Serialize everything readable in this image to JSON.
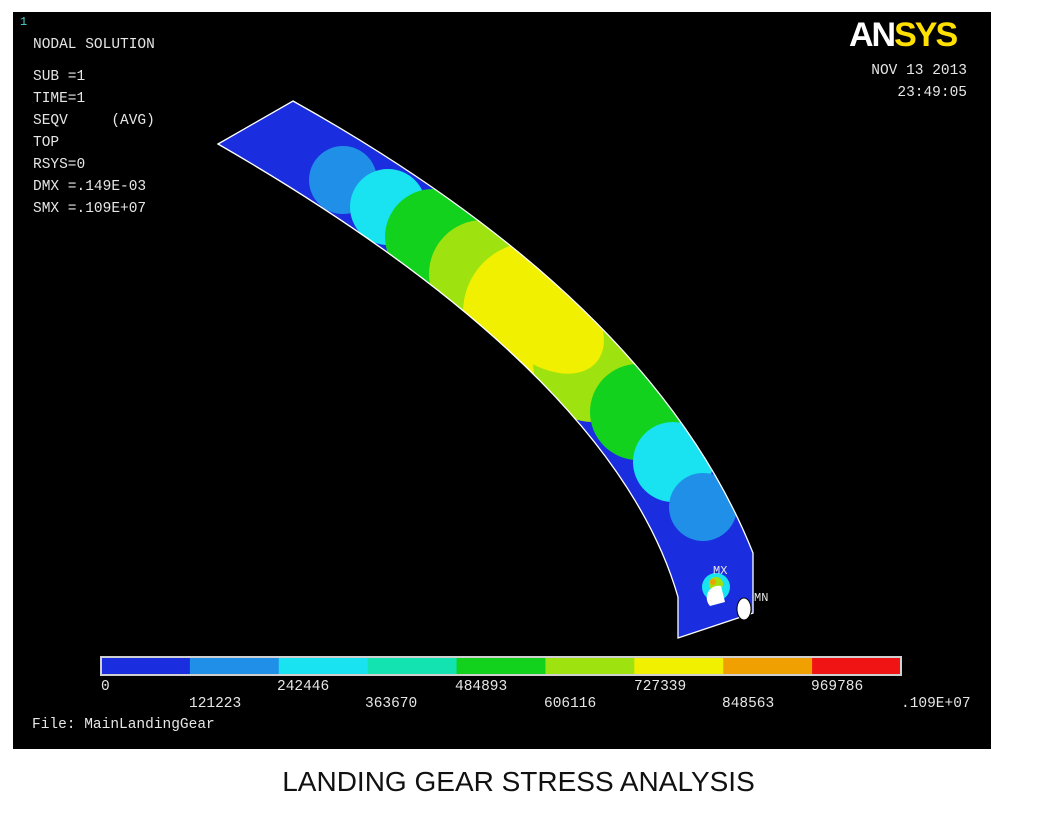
{
  "window_number": "1",
  "info_lines": [
    "NODAL SOLUTION",
    "SUB =1",
    "TIME=1",
    "SEQV     (AVG)",
    "TOP",
    "RSYS=0",
    "DMX =.149E-03",
    "SMX =.109E+07"
  ],
  "logo": {
    "part1": "AN",
    "part2": "SYS"
  },
  "date": "NOV 13 2013",
  "time": "23:49:05",
  "markers": {
    "max": "MX",
    "min": "MN"
  },
  "legend": {
    "colors": [
      "#1a2ee0",
      "#1f8fe8",
      "#19e3f0",
      "#12e3b0",
      "#12d21e",
      "#9ee30f",
      "#f0f000",
      "#f0a000",
      "#f01414"
    ],
    "labels": [
      "0",
      "121223",
      "242446",
      "363670",
      "484893",
      "606116",
      "727339",
      "848563",
      "969786",
      ".109E+07"
    ]
  },
  "file_label": "File: MainLandingGear",
  "caption": "LANDING GEAR STRESS ANALYSIS"
}
